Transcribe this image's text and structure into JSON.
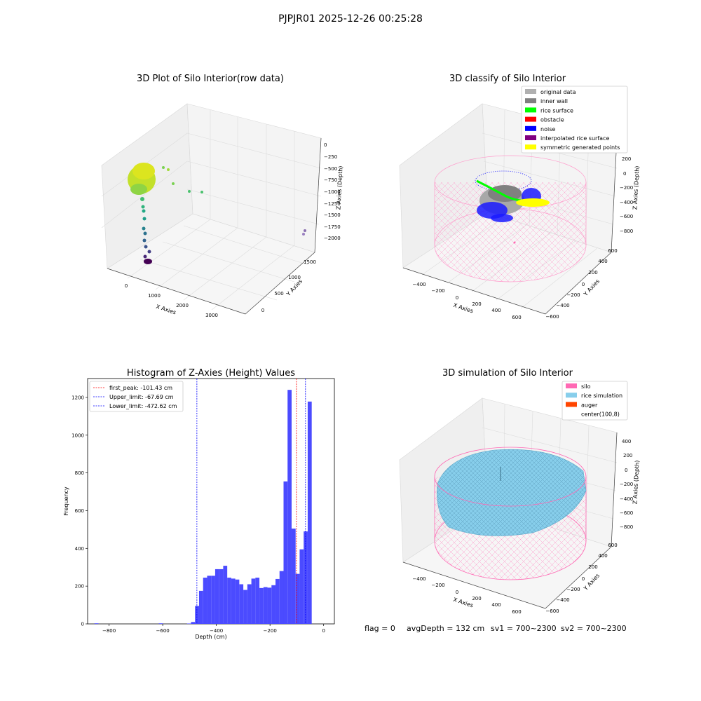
{
  "suptitle": "PJPJR01 2025-12-26 00:25:28",
  "status_line": {
    "flag": "flag = 0",
    "avg_depth": "avgDepth = 132 cm",
    "sv1": "sv1 = 700~2300",
    "sv2": "sv2 = 700~2300"
  },
  "colors": {
    "original_data": "#b0b0b0",
    "inner_wall": "#808080",
    "rice_surface": "#00ff00",
    "obstacle": "#ff0000",
    "noise": "#0000ff",
    "interpolated_rice_surface": "#800080",
    "symmetric_generated_points": "#ffff00",
    "silo": "#ff69b4",
    "rice_simulation": "#87ceeb",
    "auger": "#ff4500",
    "hist_bar": "#4b4bff",
    "first_peak": "#ff0000",
    "limit": "#0000ff"
  },
  "chart_data": [
    {
      "type": "scatter",
      "projection": "3d",
      "title": "3D Plot of Silo Interior(row data)",
      "xlabel": "X Axies",
      "ylabel": "Y Axies",
      "zlabel": "Z Axies (Depth)",
      "xticks": [
        "0",
        "1000",
        "2000",
        "3000"
      ],
      "yticks": [
        "0",
        "500",
        "1000",
        "1500"
      ],
      "zticks": [
        "0",
        "−250",
        "−500",
        "−750",
        "−1000",
        "−1250",
        "−1500",
        "−1750",
        "−2000"
      ]
    },
    {
      "type": "scatter",
      "projection": "3d",
      "title": "3D classify of Silo Interior",
      "xlabel": "X Axies",
      "ylabel": "Y Axies",
      "zlabel": "Z Axies (Depth)",
      "xticks": [
        "−400",
        "−200",
        "0",
        "200",
        "400",
        "600"
      ],
      "yticks": [
        "−600",
        "−400",
        "−200",
        "0",
        "200",
        "400",
        "600"
      ],
      "zticks": [
        "200",
        "0",
        "−200",
        "−400",
        "−600",
        "−800"
      ],
      "legend": [
        {
          "label": "original data",
          "color_key": "original_data"
        },
        {
          "label": "inner wall",
          "color_key": "inner_wall"
        },
        {
          "label": "rice surface",
          "color_key": "rice_surface"
        },
        {
          "label": "obstacle",
          "color_key": "obstacle"
        },
        {
          "label": "noise",
          "color_key": "noise"
        },
        {
          "label": "interpolated rice surface",
          "color_key": "interpolated_rice_surface"
        },
        {
          "label": "symmetric generated points",
          "color_key": "symmetric_generated_points"
        }
      ]
    },
    {
      "type": "bar",
      "title": "Histogram of Z-Axies (Height) Values",
      "xlabel": "Depth (cm)",
      "ylabel": "Frequency",
      "xlim": [
        -880,
        40
      ],
      "ylim": [
        0,
        1300
      ],
      "xticks": [
        -800,
        -600,
        -400,
        -200,
        0
      ],
      "yticks": [
        0,
        200,
        400,
        600,
        800,
        1000,
        1200
      ],
      "bin_width": 15,
      "bins": [
        {
          "x": -847,
          "value": 3
        },
        {
          "x": -607,
          "value": 3
        },
        {
          "x": -502,
          "value": 2
        },
        {
          "x": -487,
          "value": 10
        },
        {
          "x": -472,
          "value": 95
        },
        {
          "x": -457,
          "value": 175
        },
        {
          "x": -442,
          "value": 245
        },
        {
          "x": -427,
          "value": 255
        },
        {
          "x": -412,
          "value": 255
        },
        {
          "x": -397,
          "value": 290
        },
        {
          "x": -382,
          "value": 290
        },
        {
          "x": -367,
          "value": 308
        },
        {
          "x": -352,
          "value": 245
        },
        {
          "x": -337,
          "value": 240
        },
        {
          "x": -322,
          "value": 235
        },
        {
          "x": -307,
          "value": 210
        },
        {
          "x": -292,
          "value": 180
        },
        {
          "x": -277,
          "value": 210
        },
        {
          "x": -262,
          "value": 240
        },
        {
          "x": -247,
          "value": 245
        },
        {
          "x": -232,
          "value": 190
        },
        {
          "x": -217,
          "value": 195
        },
        {
          "x": -202,
          "value": 192
        },
        {
          "x": -187,
          "value": 205
        },
        {
          "x": -172,
          "value": 238
        },
        {
          "x": -157,
          "value": 280
        },
        {
          "x": -142,
          "value": 755
        },
        {
          "x": -127,
          "value": 1240
        },
        {
          "x": -112,
          "value": 505
        },
        {
          "x": -97,
          "value": 265
        },
        {
          "x": -82,
          "value": 395
        },
        {
          "x": -67,
          "value": 490
        },
        {
          "x": -52,
          "value": 1178
        }
      ],
      "lines": [
        {
          "label": "first_peak: -101.43 cm",
          "x": -101.43,
          "color_key": "first_peak"
        },
        {
          "label": "Upper_limit: -67.69 cm",
          "x": -67.69,
          "color_key": "limit"
        },
        {
          "label": "Lower_limit: -472.62 cm",
          "x": -472.62,
          "color_key": "limit"
        }
      ],
      "legend_position": "upper-left"
    },
    {
      "type": "scatter",
      "projection": "3d",
      "title": "3D simulation of Silo Interior",
      "xlabel": "X Axies",
      "ylabel": "Y Axies",
      "zlabel": "Z Axies (Depth)",
      "xticks": [
        "−400",
        "−200",
        "0",
        "200",
        "400",
        "600"
      ],
      "yticks": [
        "−600",
        "−400",
        "−200",
        "0",
        "200",
        "400",
        "600"
      ],
      "zticks": [
        "400",
        "200",
        "0",
        "−200",
        "−400",
        "−600",
        "−800"
      ],
      "legend": [
        {
          "label": "silo",
          "color_key": "silo"
        },
        {
          "label": "rice simulation",
          "color_key": "rice_simulation"
        },
        {
          "label": "auger",
          "color_key": "auger"
        },
        {
          "label": "center(100,8)",
          "color_key": ""
        }
      ]
    }
  ]
}
